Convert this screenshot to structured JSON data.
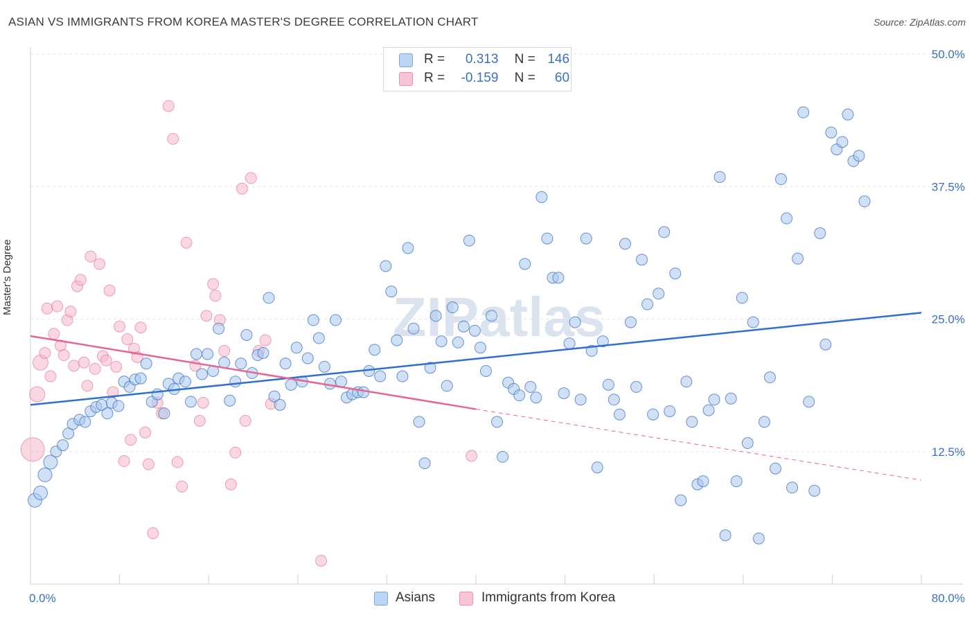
{
  "header": {
    "title": "ASIAN VS IMMIGRANTS FROM KOREA MASTER'S DEGREE CORRELATION CHART",
    "source": "Source: ZipAtlas.com"
  },
  "legend": {
    "rows": [
      {
        "r_label": "R =",
        "r_value": "0.313",
        "n_label": "N =",
        "n_value": "146"
      },
      {
        "r_label": "R =",
        "r_value": "-0.159",
        "n_label": "N =",
        "n_value": "60"
      }
    ]
  },
  "watermark": "ZIPatlas",
  "colors": {
    "blue": "#3a6fc4",
    "blue_fill": "#a9c8ef",
    "blue_line": "#2e6fd1",
    "pink": "#e8799c",
    "pink_fill": "#f4b8cb",
    "pink_line": "#e5668f",
    "grid": "#e3e3e3",
    "axis_label": "#3a6fc4"
  },
  "chart_data": {
    "type": "scatter",
    "title": "ASIAN VS IMMIGRANTS FROM KOREA MASTER'S DEGREE CORRELATION CHART",
    "xlabel": "",
    "ylabel": "Master's Degree",
    "xlim": [
      0,
      80
    ],
    "ylim": [
      0,
      50
    ],
    "x_tick_labels": [
      "0.0%",
      "80.0%"
    ],
    "y_ticks": [
      12.5,
      25.0,
      37.5,
      50.0
    ],
    "y_tick_labels": [
      "12.5%",
      "25.0%",
      "37.5%",
      "50.0%"
    ],
    "series": [
      {
        "name": "Asians",
        "r": 0.313,
        "n": 146,
        "trend": {
          "x0": 0,
          "y0": 16.9,
          "x1": 80,
          "y1": 25.6
        },
        "points": [
          [
            0.4,
            7.9
          ],
          [
            0.9,
            8.6
          ],
          [
            1.3,
            10.3
          ],
          [
            1.8,
            11.5
          ],
          [
            2.3,
            12.5
          ],
          [
            2.9,
            13.1
          ],
          [
            3.4,
            14.2
          ],
          [
            3.8,
            15.1
          ],
          [
            4.4,
            15.5
          ],
          [
            4.9,
            15.3
          ],
          [
            5.4,
            16.3
          ],
          [
            5.9,
            16.7
          ],
          [
            6.4,
            16.9
          ],
          [
            6.9,
            16.1
          ],
          [
            7.3,
            17.1
          ],
          [
            7.9,
            16.8
          ],
          [
            8.4,
            19.1
          ],
          [
            8.9,
            18.6
          ],
          [
            9.4,
            19.3
          ],
          [
            9.9,
            19.4
          ],
          [
            10.4,
            20.8
          ],
          [
            10.9,
            17.2
          ],
          [
            11.4,
            17.9
          ],
          [
            12.0,
            16.1
          ],
          [
            12.4,
            18.9
          ],
          [
            12.9,
            18.4
          ],
          [
            13.3,
            19.4
          ],
          [
            13.9,
            19.1
          ],
          [
            14.4,
            17.2
          ],
          [
            14.9,
            21.7
          ],
          [
            15.4,
            19.8
          ],
          [
            15.9,
            21.7
          ],
          [
            16.4,
            20.1
          ],
          [
            16.9,
            24.1
          ],
          [
            17.4,
            20.9
          ],
          [
            17.9,
            17.3
          ],
          [
            18.4,
            19.1
          ],
          [
            18.9,
            20.8
          ],
          [
            19.4,
            23.5
          ],
          [
            19.9,
            19.9
          ],
          [
            20.4,
            21.6
          ],
          [
            20.9,
            21.8
          ],
          [
            21.4,
            27.0
          ],
          [
            21.9,
            17.7
          ],
          [
            22.4,
            16.9
          ],
          [
            22.9,
            20.8
          ],
          [
            23.4,
            18.8
          ],
          [
            23.9,
            22.3
          ],
          [
            24.4,
            19.1
          ],
          [
            24.9,
            21.3
          ],
          [
            25.4,
            24.9
          ],
          [
            25.9,
            23.2
          ],
          [
            26.4,
            20.5
          ],
          [
            26.9,
            18.9
          ],
          [
            27.4,
            24.9
          ],
          [
            27.9,
            19.1
          ],
          [
            28.4,
            17.6
          ],
          [
            28.9,
            17.9
          ],
          [
            29.4,
            18.1
          ],
          [
            29.9,
            18.1
          ],
          [
            30.4,
            20.1
          ],
          [
            30.9,
            22.1
          ],
          [
            31.4,
            19.6
          ],
          [
            31.9,
            30.0
          ],
          [
            32.4,
            27.6
          ],
          [
            32.9,
            23.0
          ],
          [
            33.4,
            19.6
          ],
          [
            33.9,
            31.7
          ],
          [
            34.4,
            24.1
          ],
          [
            34.9,
            15.3
          ],
          [
            35.4,
            11.4
          ],
          [
            35.9,
            20.4
          ],
          [
            36.4,
            25.3
          ],
          [
            36.9,
            22.9
          ],
          [
            37.4,
            18.7
          ],
          [
            37.9,
            26.1
          ],
          [
            38.4,
            22.8
          ],
          [
            38.9,
            24.3
          ],
          [
            39.4,
            32.4
          ],
          [
            39.9,
            23.9
          ],
          [
            40.4,
            22.3
          ],
          [
            40.9,
            20.1
          ],
          [
            41.4,
            25.3
          ],
          [
            41.9,
            15.3
          ],
          [
            42.4,
            12.0
          ],
          [
            42.9,
            19.0
          ],
          [
            43.4,
            18.4
          ],
          [
            43.9,
            17.8
          ],
          [
            44.4,
            30.2
          ],
          [
            44.9,
            18.6
          ],
          [
            45.4,
            17.6
          ],
          [
            45.9,
            36.5
          ],
          [
            46.4,
            32.6
          ],
          [
            46.9,
            28.9
          ],
          [
            47.4,
            28.9
          ],
          [
            47.9,
            18.0
          ],
          [
            48.4,
            22.7
          ],
          [
            48.9,
            24.7
          ],
          [
            49.4,
            17.4
          ],
          [
            49.9,
            32.6
          ],
          [
            50.4,
            22.0
          ],
          [
            50.9,
            11.0
          ],
          [
            51.4,
            22.9
          ],
          [
            51.9,
            18.8
          ],
          [
            52.4,
            17.4
          ],
          [
            52.9,
            16.0
          ],
          [
            53.4,
            32.1
          ],
          [
            53.9,
            24.7
          ],
          [
            54.4,
            18.6
          ],
          [
            54.9,
            30.6
          ],
          [
            55.4,
            26.4
          ],
          [
            55.9,
            16.0
          ],
          [
            56.4,
            27.4
          ],
          [
            56.9,
            33.2
          ],
          [
            57.4,
            16.3
          ],
          [
            57.9,
            29.3
          ],
          [
            58.4,
            7.9
          ],
          [
            58.9,
            19.1
          ],
          [
            59.4,
            15.3
          ],
          [
            59.9,
            9.4
          ],
          [
            60.4,
            9.7
          ],
          [
            60.9,
            16.4
          ],
          [
            61.4,
            17.4
          ],
          [
            61.9,
            38.4
          ],
          [
            62.4,
            4.6
          ],
          [
            62.9,
            17.5
          ],
          [
            63.4,
            9.7
          ],
          [
            63.9,
            27.0
          ],
          [
            64.4,
            13.3
          ],
          [
            64.9,
            24.7
          ],
          [
            65.4,
            4.3
          ],
          [
            65.9,
            15.3
          ],
          [
            66.4,
            19.5
          ],
          [
            66.9,
            10.9
          ],
          [
            67.4,
            38.2
          ],
          [
            67.9,
            34.5
          ],
          [
            68.4,
            9.1
          ],
          [
            68.9,
            30.7
          ],
          [
            69.4,
            44.5
          ],
          [
            69.9,
            17.2
          ],
          [
            70.4,
            8.8
          ],
          [
            70.9,
            33.1
          ],
          [
            71.4,
            22.6
          ],
          [
            71.9,
            42.6
          ],
          [
            72.4,
            41.0
          ],
          [
            72.9,
            41.7
          ],
          [
            73.4,
            44.3
          ],
          [
            73.9,
            39.9
          ],
          [
            74.4,
            40.4
          ],
          [
            74.9,
            36.1
          ]
        ]
      },
      {
        "name": "Immigrants from Korea",
        "r": -0.159,
        "n": 60,
        "trend": {
          "x0": 0,
          "y0": 23.4,
          "x1": 40,
          "y1": 16.5,
          "dash_x1": 80,
          "dash_y1": 9.8
        },
        "points": [
          [
            0.2,
            12.7
          ],
          [
            0.6,
            17.9
          ],
          [
            0.9,
            20.9
          ],
          [
            1.3,
            21.8
          ],
          [
            1.5,
            26.0
          ],
          [
            1.8,
            19.6
          ],
          [
            2.1,
            23.6
          ],
          [
            2.4,
            26.2
          ],
          [
            2.7,
            22.5
          ],
          [
            3.0,
            21.6
          ],
          [
            3.3,
            24.9
          ],
          [
            3.6,
            25.7
          ],
          [
            3.9,
            20.6
          ],
          [
            4.2,
            28.1
          ],
          [
            4.5,
            28.7
          ],
          [
            4.8,
            20.9
          ],
          [
            5.1,
            18.7
          ],
          [
            5.4,
            30.9
          ],
          [
            5.8,
            20.3
          ],
          [
            6.2,
            30.2
          ],
          [
            6.5,
            21.5
          ],
          [
            6.8,
            21.1
          ],
          [
            7.1,
            27.7
          ],
          [
            7.4,
            18.1
          ],
          [
            7.7,
            20.5
          ],
          [
            8.0,
            24.3
          ],
          [
            8.4,
            11.6
          ],
          [
            8.7,
            23.1
          ],
          [
            9.0,
            13.6
          ],
          [
            9.3,
            22.2
          ],
          [
            9.6,
            21.4
          ],
          [
            9.9,
            24.2
          ],
          [
            10.3,
            14.3
          ],
          [
            10.6,
            11.3
          ],
          [
            11.0,
            4.8
          ],
          [
            11.4,
            17.1
          ],
          [
            11.8,
            16.1
          ],
          [
            12.4,
            45.1
          ],
          [
            12.8,
            42.0
          ],
          [
            13.2,
            11.5
          ],
          [
            13.6,
            9.2
          ],
          [
            14.0,
            32.2
          ],
          [
            14.8,
            20.6
          ],
          [
            15.2,
            15.4
          ],
          [
            15.5,
            17.1
          ],
          [
            15.8,
            25.3
          ],
          [
            16.4,
            28.3
          ],
          [
            16.6,
            27.2
          ],
          [
            17.0,
            24.9
          ],
          [
            17.4,
            22.0
          ],
          [
            18.0,
            9.4
          ],
          [
            18.4,
            12.4
          ],
          [
            19.0,
            37.3
          ],
          [
            19.3,
            15.4
          ],
          [
            19.8,
            38.3
          ],
          [
            20.5,
            22.0
          ],
          [
            21.1,
            23.0
          ],
          [
            21.6,
            17.0
          ],
          [
            26.1,
            2.2
          ],
          [
            39.6,
            12.1
          ]
        ]
      }
    ]
  },
  "bottom_legend": {
    "items": [
      {
        "label": "Asians"
      },
      {
        "label": "Immigrants from Korea"
      }
    ]
  }
}
